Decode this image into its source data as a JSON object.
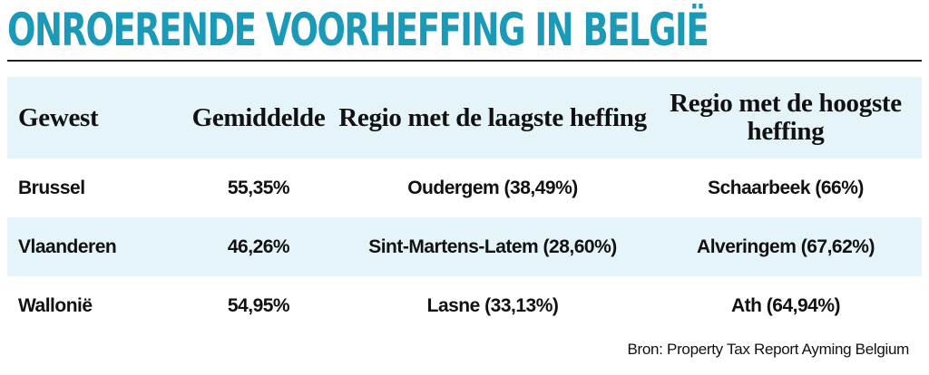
{
  "title": "ONROERENDE VOORHEFFING IN BELGIË",
  "colors": {
    "title": "#1b9ab8",
    "rule": "#222222",
    "stripe": "#e5f4f8",
    "text": "#111111"
  },
  "table": {
    "headers": [
      "Gewest",
      "Gemiddelde",
      "Regio met de laagste heffing",
      "Regio met de hoogste heffing"
    ],
    "rows": [
      [
        "Brussel",
        "55,35%",
        "Oudergem (38,49%)",
        "Schaarbeek (66%)"
      ],
      [
        "Vlaanderen",
        "46,26%",
        "Sint-Martens-Latem (28,60%)",
        "Alveringem (67,62%)"
      ],
      [
        "Wallonië",
        "54,95%",
        "Lasne (33,13%)",
        "Ath (64,94%)"
      ]
    ]
  },
  "source": "Bron: Property Tax Report Ayming Belgium"
}
